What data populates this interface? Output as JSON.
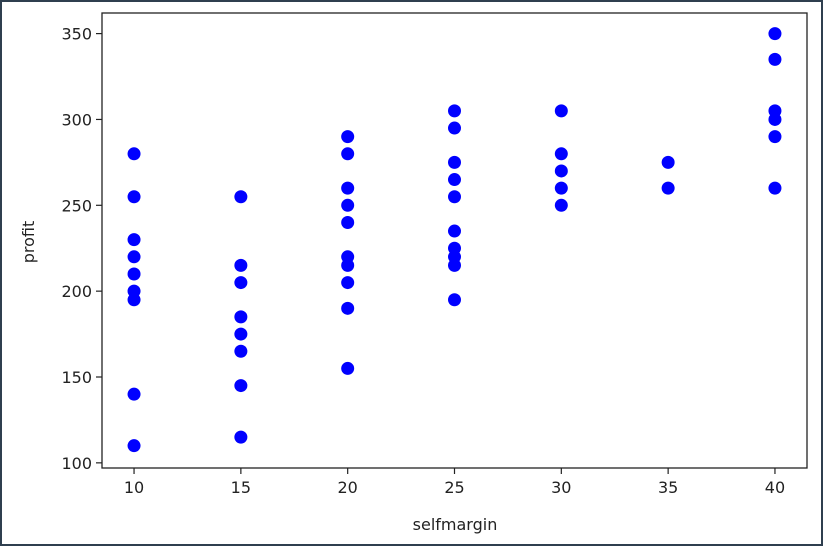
{
  "chart_data": {
    "type": "scatter",
    "title": "",
    "xlabel": "selfmargin",
    "ylabel": "profit",
    "xlim": [
      8.5,
      41.5
    ],
    "ylim": [
      97,
      362
    ],
    "xticks": [
      10,
      15,
      20,
      25,
      30,
      35,
      40
    ],
    "yticks": [
      100,
      150,
      200,
      250,
      300,
      350
    ],
    "grid": false,
    "marker_color": "#0000ff",
    "series": [
      {
        "points": [
          {
            "x": 10,
            "y": 280
          },
          {
            "x": 10,
            "y": 255
          },
          {
            "x": 10,
            "y": 230
          },
          {
            "x": 10,
            "y": 220
          },
          {
            "x": 10,
            "y": 210
          },
          {
            "x": 10,
            "y": 200
          },
          {
            "x": 10,
            "y": 195
          },
          {
            "x": 10,
            "y": 140
          },
          {
            "x": 10,
            "y": 110
          },
          {
            "x": 15,
            "y": 255
          },
          {
            "x": 15,
            "y": 215
          },
          {
            "x": 15,
            "y": 205
          },
          {
            "x": 15,
            "y": 185
          },
          {
            "x": 15,
            "y": 175
          },
          {
            "x": 15,
            "y": 165
          },
          {
            "x": 15,
            "y": 145
          },
          {
            "x": 15,
            "y": 115
          },
          {
            "x": 20,
            "y": 290
          },
          {
            "x": 20,
            "y": 280
          },
          {
            "x": 20,
            "y": 260
          },
          {
            "x": 20,
            "y": 250
          },
          {
            "x": 20,
            "y": 240
          },
          {
            "x": 20,
            "y": 220
          },
          {
            "x": 20,
            "y": 215
          },
          {
            "x": 20,
            "y": 205
          },
          {
            "x": 20,
            "y": 190
          },
          {
            "x": 20,
            "y": 155
          },
          {
            "x": 25,
            "y": 305
          },
          {
            "x": 25,
            "y": 295
          },
          {
            "x": 25,
            "y": 275
          },
          {
            "x": 25,
            "y": 265
          },
          {
            "x": 25,
            "y": 255
          },
          {
            "x": 25,
            "y": 235
          },
          {
            "x": 25,
            "y": 225
          },
          {
            "x": 25,
            "y": 220
          },
          {
            "x": 25,
            "y": 215
          },
          {
            "x": 25,
            "y": 195
          },
          {
            "x": 30,
            "y": 305
          },
          {
            "x": 30,
            "y": 280
          },
          {
            "x": 30,
            "y": 270
          },
          {
            "x": 30,
            "y": 260
          },
          {
            "x": 30,
            "y": 250
          },
          {
            "x": 35,
            "y": 275
          },
          {
            "x": 35,
            "y": 260
          },
          {
            "x": 40,
            "y": 350
          },
          {
            "x": 40,
            "y": 335
          },
          {
            "x": 40,
            "y": 305
          },
          {
            "x": 40,
            "y": 300
          },
          {
            "x": 40,
            "y": 290
          },
          {
            "x": 40,
            "y": 260
          }
        ]
      }
    ]
  }
}
